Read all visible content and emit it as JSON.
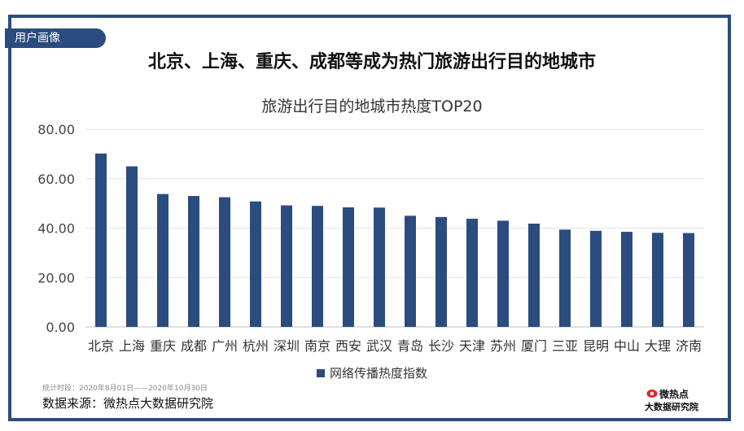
{
  "header": {
    "tag": "用户画像",
    "headline": "北京、上海、重庆、成都等成为热门旅游出行目的地城市"
  },
  "chart_data": {
    "type": "bar",
    "title": "旅游出行目的地城市热度TOP20",
    "categories": [
      "北京",
      "上海",
      "重庆",
      "成都",
      "广州",
      "杭州",
      "深圳",
      "南京",
      "西安",
      "武汉",
      "青岛",
      "长沙",
      "天津",
      "苏州",
      "厦门",
      "三亚",
      "昆明",
      "中山",
      "大理",
      "济南"
    ],
    "series": [
      {
        "name": "网络传播热度指数",
        "values": [
          70.2,
          65.0,
          53.8,
          53.0,
          52.5,
          50.8,
          49.2,
          49.0,
          48.4,
          48.3,
          45.0,
          44.5,
          43.8,
          43.0,
          41.8,
          39.4,
          38.9,
          38.5,
          38.1,
          38.0
        ]
      }
    ],
    "ylim": [
      0,
      80
    ],
    "yticks": [
      "0.00",
      "20.00",
      "40.00",
      "60.00",
      "80.00"
    ],
    "grid": true,
    "legend": "bottom",
    "colors": {
      "bar": "#2b4c7e",
      "grid": "#e3e3e3"
    }
  },
  "footer": {
    "note": "统计时段：2020年8月01日——2020年10月30日",
    "source": "数据来源：微热点大数据研究院",
    "brand_line1": "微热点",
    "brand_line2": "大数据研究院"
  }
}
